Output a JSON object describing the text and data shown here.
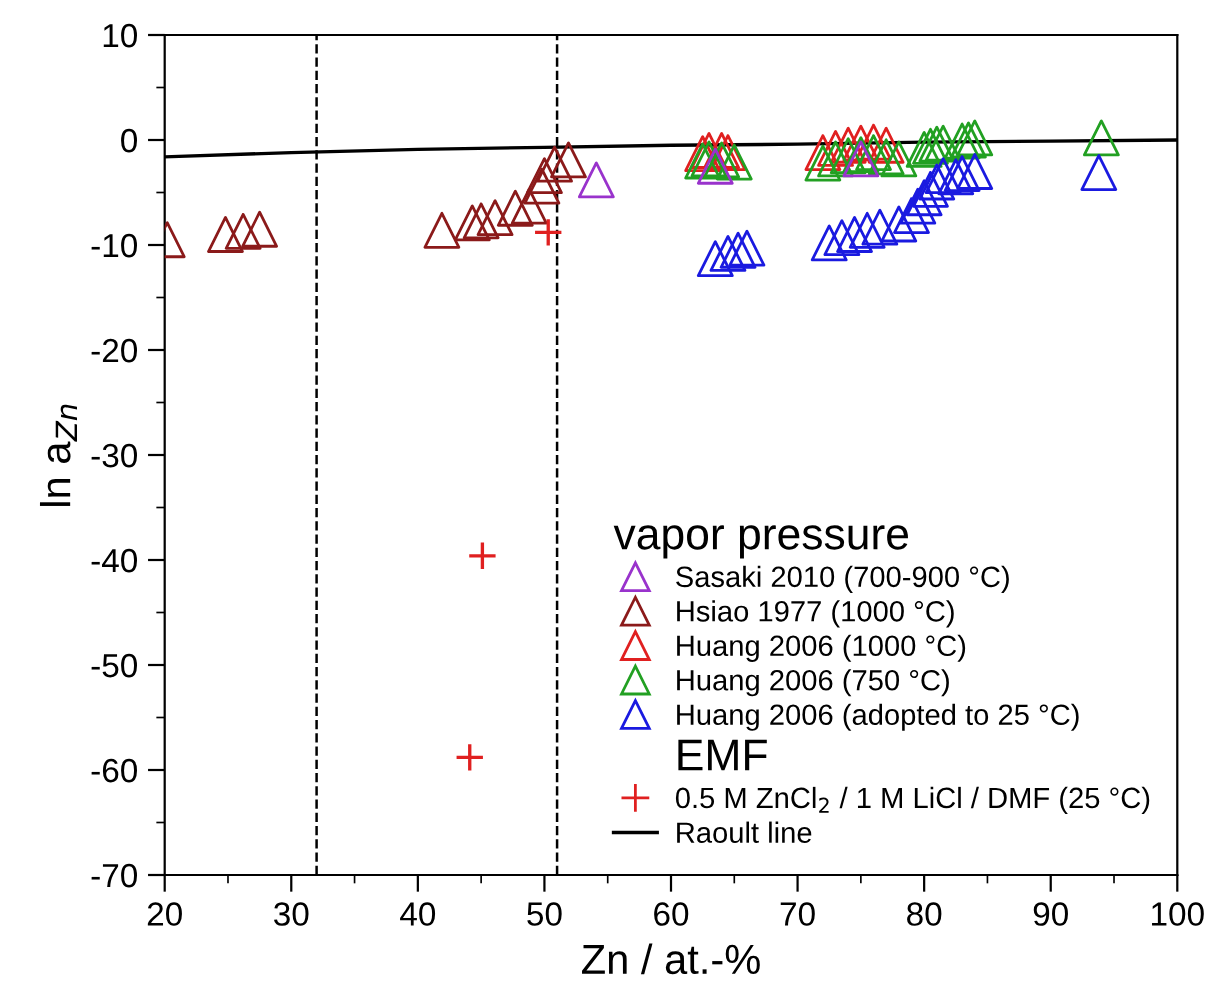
{
  "chart_data": {
    "type": "scatter",
    "xlabel": "Zn / at.-%",
    "ylabel": "ln a$_{Zn}$",
    "legend_title": "vapor pressure",
    "legend": "bottom right",
    "grid": false,
    "xlim": [
      20,
      100
    ],
    "xticks": [
      20,
      30,
      40,
      50,
      60,
      70,
      80,
      90,
      100
    ],
    "ylim": [
      -70,
      10
    ],
    "yticks": [
      10,
      0,
      -10,
      -20,
      -30,
      -40,
      -50,
      -60,
      -70
    ],
    "ref_lines": [
      {
        "axis": "x",
        "value": 32,
        "label": null,
        "color": "#000000",
        "line_style": "dashed"
      },
      {
        "axis": "x",
        "value": 51,
        "label": null,
        "color": "#000000",
        "line_style": "dashed"
      }
    ],
    "annotations": [
      "EMF"
    ],
    "series": [
      {
        "name": "Sasaki 2010 (700-900 °C)",
        "color": "#9933cc",
        "marker": "triangle",
        "x": [
          54.1,
          63.5,
          75
        ],
        "values": [
          -3.8,
          -2.5,
          -1.8
        ]
      },
      {
        "name": "Hsiao 1977 (1000 °C)",
        "color": "#8b1a1a",
        "marker": "triangle",
        "x": [
          20.2,
          24.8,
          26.2,
          27.5,
          41.9,
          44.3,
          45,
          46.1,
          47.7,
          48.8,
          49.8,
          50.0,
          50.8,
          51.9
        ],
        "values": [
          -9.5,
          -9.0,
          -8.7,
          -8.5,
          -8.6,
          -7.9,
          -7.7,
          -7.4,
          -6.5,
          -6.3,
          -4.4,
          -3.4,
          -2.3,
          -1.9
        ]
      },
      {
        "name": "Huang 2006 (1000 °C)",
        "color": "#e02020",
        "marker": "triangle",
        "x": [
          62.5,
          63,
          63.5,
          64,
          64.5,
          72,
          73,
          74,
          75,
          76,
          77
        ],
        "values": [
          -1.3,
          -1.0,
          null,
          -1.0,
          -1.2,
          -1.2,
          -0.8,
          -0.5,
          -0.3,
          -0.2,
          -0.5
        ]
      },
      {
        "name": "Huang 2006 (750 °C)",
        "color": "#22a022",
        "marker": "triangle",
        "x": [
          62.5,
          63,
          64,
          65,
          72,
          73,
          74,
          75,
          76,
          77,
          78,
          80,
          80.5,
          81,
          81.5,
          83,
          83.5,
          84,
          94
        ],
        "values": [
          -2,
          -1.8,
          -1.9,
          -2.1,
          -2.2,
          -1.8,
          -1.5,
          -1.4,
          -1.2,
          -1.6,
          -1.8,
          -0.9,
          -0.6,
          -0.4,
          -0.3,
          -0.1,
          0,
          0.2,
          0.2
        ]
      },
      {
        "name": "Huang 2006 (adopted to 25 °C)",
        "color": "#1a1ae0",
        "marker": "triangle",
        "x": [
          63.5,
          64.5,
          65.3,
          66,
          72.5,
          73.5,
          74.5,
          75.5,
          76.5,
          78,
          79,
          79.5,
          80,
          80.5,
          81,
          81.5,
          82.5,
          83,
          84,
          93.8
        ],
        "values": [
          -11.3,
          -10.8,
          -10.5,
          -10.3,
          -9.8,
          -9.3,
          -9,
          -8.6,
          -8.3,
          -8,
          -7.2,
          -6.3,
          -5.5,
          -4.7,
          -4,
          -3.4,
          -3.5,
          -3.2,
          -3.0,
          -3.1
        ]
      },
      {
        "name": "0.5 M ZnCl$_{2}$ / 1 M LiCl / DMF (25 °C)",
        "color": "#e02020",
        "marker": "cross",
        "x": [
          50.3,
          45.1,
          44.1
        ],
        "values": [
          -8.8,
          -39.6,
          -58.8
        ]
      },
      {
        "name": "Raoult line",
        "type": "line",
        "color": "#000000",
        "marker": "none",
        "line_style": "solid",
        "x": [
          20,
          30,
          40,
          50,
          60,
          70,
          80,
          90,
          100
        ],
        "values": [
          -1.6,
          -1.2,
          -0.9,
          -0.7,
          -0.5,
          -0.4,
          -0.2,
          -0.1,
          0
        ]
      }
    ]
  }
}
